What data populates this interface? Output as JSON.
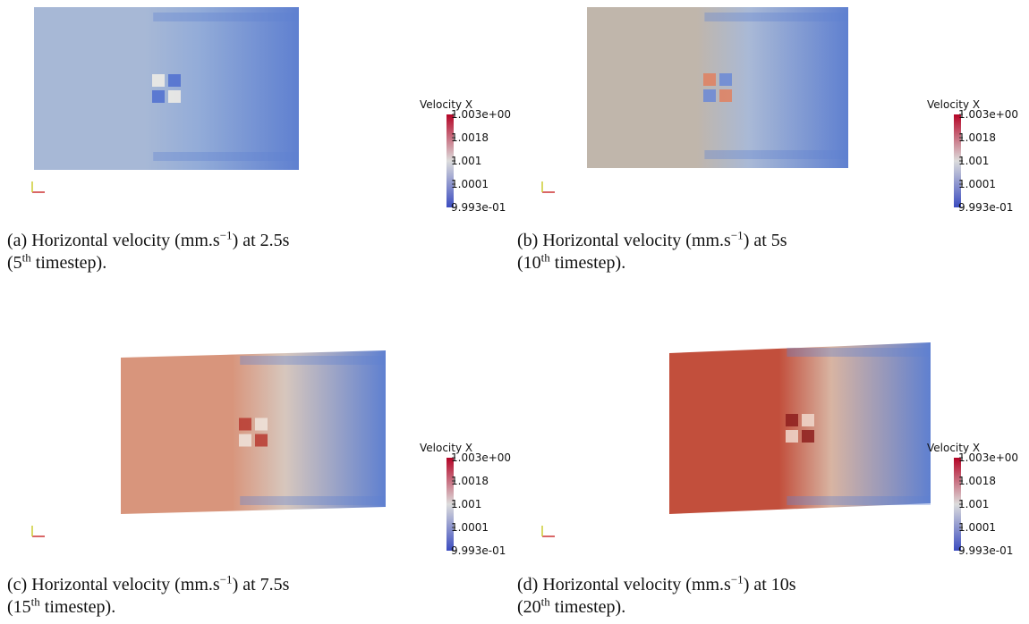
{
  "panels": [
    {
      "colorbar": {
        "title": "Velocity X",
        "ticks": [
          "1.003e+00",
          "1.0018",
          "1.001",
          "1.0001",
          "9.993e-01"
        ]
      },
      "caption": {
        "label": "(a)",
        "line1": "Horizontal velocity (mm.s",
        "sup1": "−1",
        "line1_end": ") at 2.5s",
        "line2_start": "(5",
        "sup2": "th",
        "line2_end": " timestep)."
      }
    },
    {
      "colorbar": {
        "title": "Velocity X",
        "ticks": [
          "1.003e+00",
          "1.0018",
          "1.001",
          "1.0001",
          "9.993e-01"
        ]
      },
      "caption": {
        "label": "(b)",
        "line1": "Horizontal velocity (mm.s",
        "sup1": "−1",
        "line1_end": ") at 5s",
        "line2_start": "(10",
        "sup2": "th",
        "line2_end": " timestep)."
      }
    },
    {
      "colorbar": {
        "title": "Velocity X",
        "ticks": [
          "1.003e+00",
          "1.0018",
          "1.001",
          "1.0001",
          "9.993e-01"
        ]
      },
      "caption": {
        "label": "(c)",
        "line1": "Horizontal velocity (mm.s",
        "sup1": "−1",
        "line1_end": ") at 7.5s",
        "line2_start": "(15",
        "sup2": "th",
        "line2_end": " timestep)."
      }
    },
    {
      "colorbar": {
        "title": "Velocity X",
        "ticks": [
          "1.003e+00",
          "1.0018",
          "1.001",
          "1.0001",
          "9.993e-01"
        ]
      },
      "caption": {
        "label": "(d)",
        "line1": "Horizontal velocity (mm.s",
        "sup1": "−1",
        "line1_end": ") at 10s",
        "line2_start": "(20",
        "sup2": "th",
        "line2_end": " timestep)."
      }
    }
  ]
}
